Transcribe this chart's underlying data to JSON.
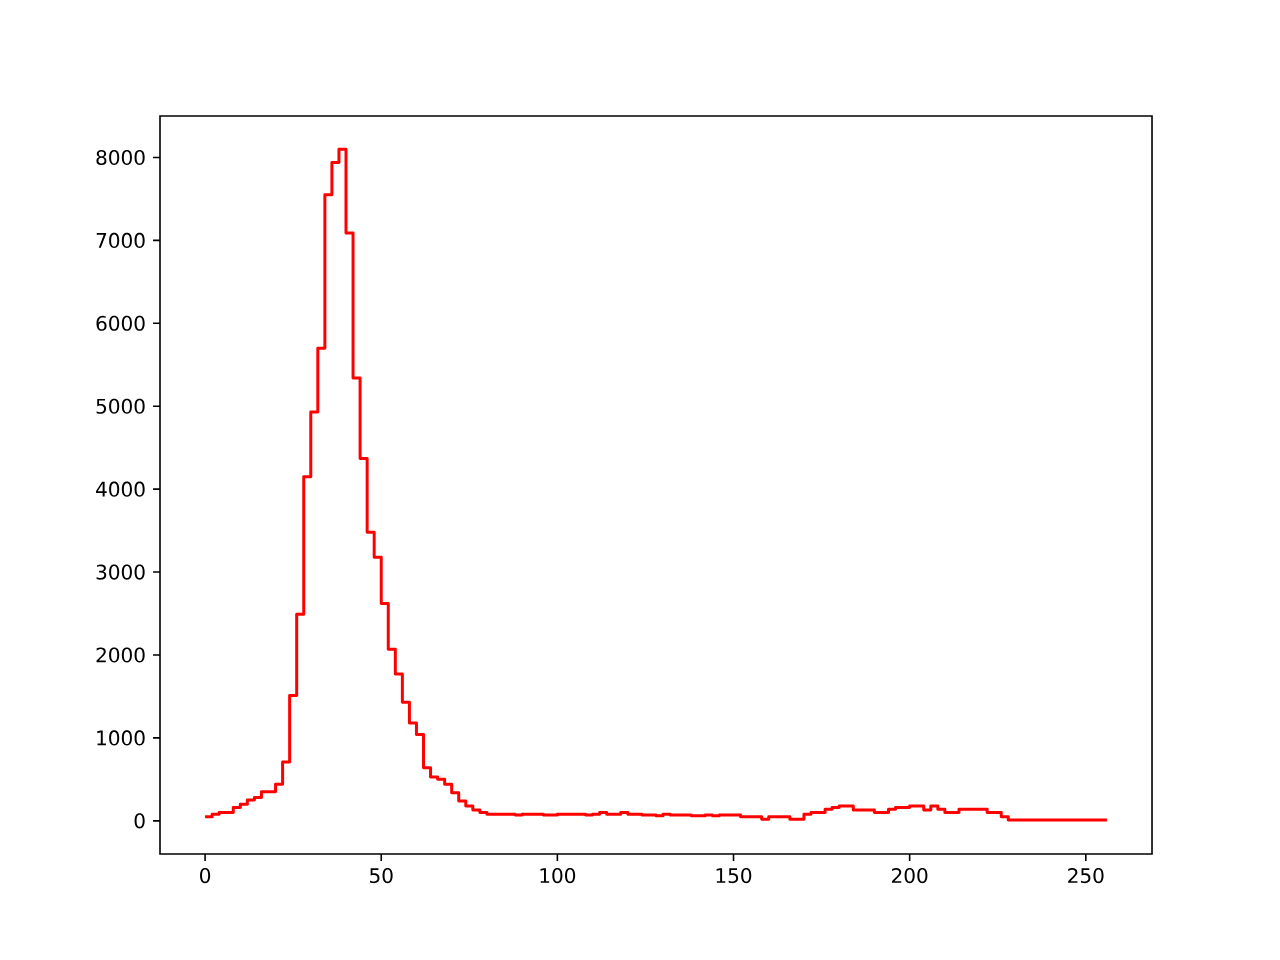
{
  "chart_data": {
    "type": "histogram",
    "bins": [
      0,
      2,
      4,
      6,
      8,
      10,
      12,
      14,
      16,
      18,
      20,
      22,
      24,
      26,
      28,
      30,
      32,
      34,
      36,
      38,
      40,
      42,
      44,
      46,
      48,
      50,
      52,
      54,
      56,
      58,
      60,
      62,
      64,
      66,
      68,
      70,
      72,
      74,
      76,
      78,
      80,
      82,
      84,
      86,
      88,
      90,
      92,
      94,
      96,
      98,
      100,
      102,
      104,
      106,
      108,
      110,
      112,
      114,
      116,
      118,
      120,
      122,
      124,
      126,
      128,
      130,
      132,
      134,
      136,
      138,
      140,
      142,
      144,
      146,
      148,
      150,
      152,
      154,
      156,
      158,
      160,
      162,
      164,
      166,
      168,
      170,
      172,
      174,
      176,
      178,
      180,
      182,
      184,
      186,
      188,
      190,
      192,
      194,
      196,
      198,
      200,
      202,
      204,
      206,
      208,
      210,
      212,
      214,
      216,
      218,
      220,
      222,
      224,
      226,
      228,
      230,
      232,
      234,
      236,
      238,
      240,
      242,
      244,
      246,
      248,
      250,
      252,
      254,
      256
    ],
    "values": [
      50,
      80,
      100,
      100,
      160,
      200,
      250,
      280,
      350,
      350,
      440,
      710,
      1510,
      2490,
      4150,
      4930,
      5700,
      7550,
      7940,
      8100,
      7090,
      5340,
      4370,
      3480,
      3180,
      2620,
      2070,
      1770,
      1430,
      1180,
      1040,
      640,
      530,
      500,
      440,
      340,
      240,
      180,
      130,
      100,
      80,
      80,
      80,
      80,
      70,
      80,
      80,
      80,
      70,
      70,
      80,
      80,
      80,
      80,
      70,
      80,
      100,
      80,
      80,
      100,
      80,
      80,
      70,
      70,
      60,
      80,
      70,
      70,
      70,
      60,
      60,
      70,
      60,
      70,
      70,
      70,
      50,
      50,
      50,
      20,
      50,
      50,
      50,
      20,
      20,
      80,
      100,
      100,
      140,
      160,
      180,
      180,
      130,
      130,
      130,
      100,
      100,
      140,
      160,
      160,
      180,
      180,
      130,
      180,
      140,
      100,
      100,
      140,
      140,
      140,
      140,
      100,
      100,
      50,
      10,
      10,
      10,
      10,
      10,
      10,
      10,
      10,
      10,
      10,
      10,
      10,
      10,
      10
    ],
    "color": "#ff0000",
    "xlim": [
      -12.8,
      268.8
    ],
    "ylim": [
      -400,
      8500
    ],
    "xticks": [
      0,
      50,
      100,
      150,
      200,
      250
    ],
    "yticks": [
      0,
      1000,
      2000,
      3000,
      4000,
      5000,
      6000,
      7000,
      8000
    ]
  }
}
